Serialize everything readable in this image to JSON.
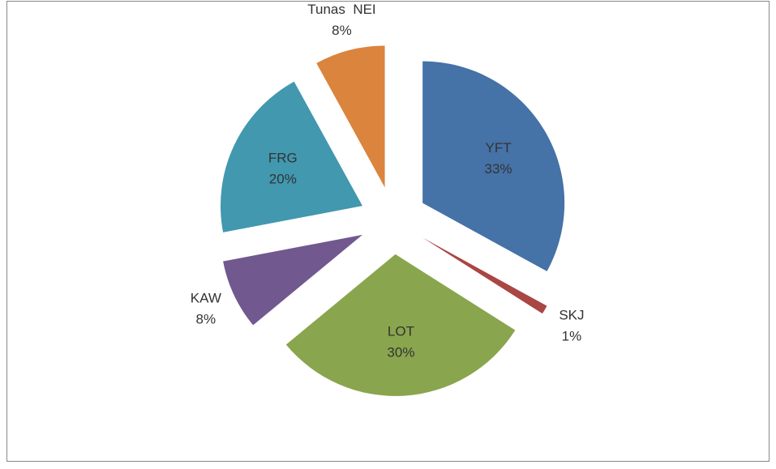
{
  "chart_data": {
    "type": "pie",
    "categories": [
      "YFT",
      "SKJ",
      "LOT",
      "KAW",
      "FRG",
      "Tunas  NEI"
    ],
    "values": [
      33,
      1,
      30,
      8,
      20,
      8
    ],
    "value_labels": [
      "33%",
      "1%",
      "30%",
      "8%",
      "20%",
      "8%"
    ],
    "colors": [
      "#4572a7",
      "#aa4643",
      "#89a54e",
      "#71588f",
      "#4198af",
      "#db843d"
    ]
  }
}
